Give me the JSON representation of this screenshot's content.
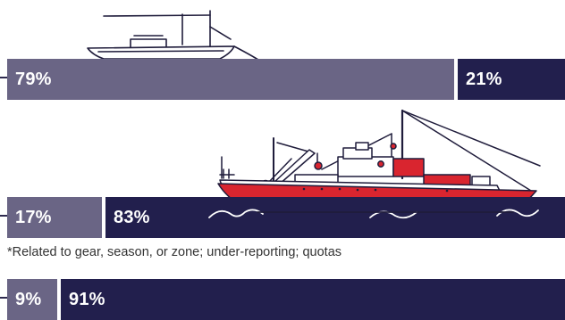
{
  "colors": {
    "light": "#6a6585",
    "dark": "#221f4d",
    "hull_red": "#d9252f",
    "line": "#1f1c3b",
    "water": "#2c2a5c"
  },
  "bars": [
    {
      "segments": [
        {
          "label": "79%",
          "value": 79,
          "tone": "light"
        },
        {
          "label": "21%",
          "value": 21,
          "tone": "dark"
        }
      ]
    },
    {
      "segments": [
        {
          "label": "17%",
          "value": 17,
          "tone": "light"
        },
        {
          "label": "83%",
          "value": 83,
          "tone": "dark"
        }
      ]
    },
    {
      "segments": [
        {
          "label": "9%",
          "value": 9,
          "tone": "light"
        },
        {
          "label": "91%",
          "value": 91,
          "tone": "dark"
        }
      ]
    }
  ],
  "footnote": "*Related to gear, season, or zone; under-reporting; quotas",
  "icons": {
    "small_boat": "small-fishing-boat-illustration",
    "trawler": "industrial-trawler-illustration"
  }
}
